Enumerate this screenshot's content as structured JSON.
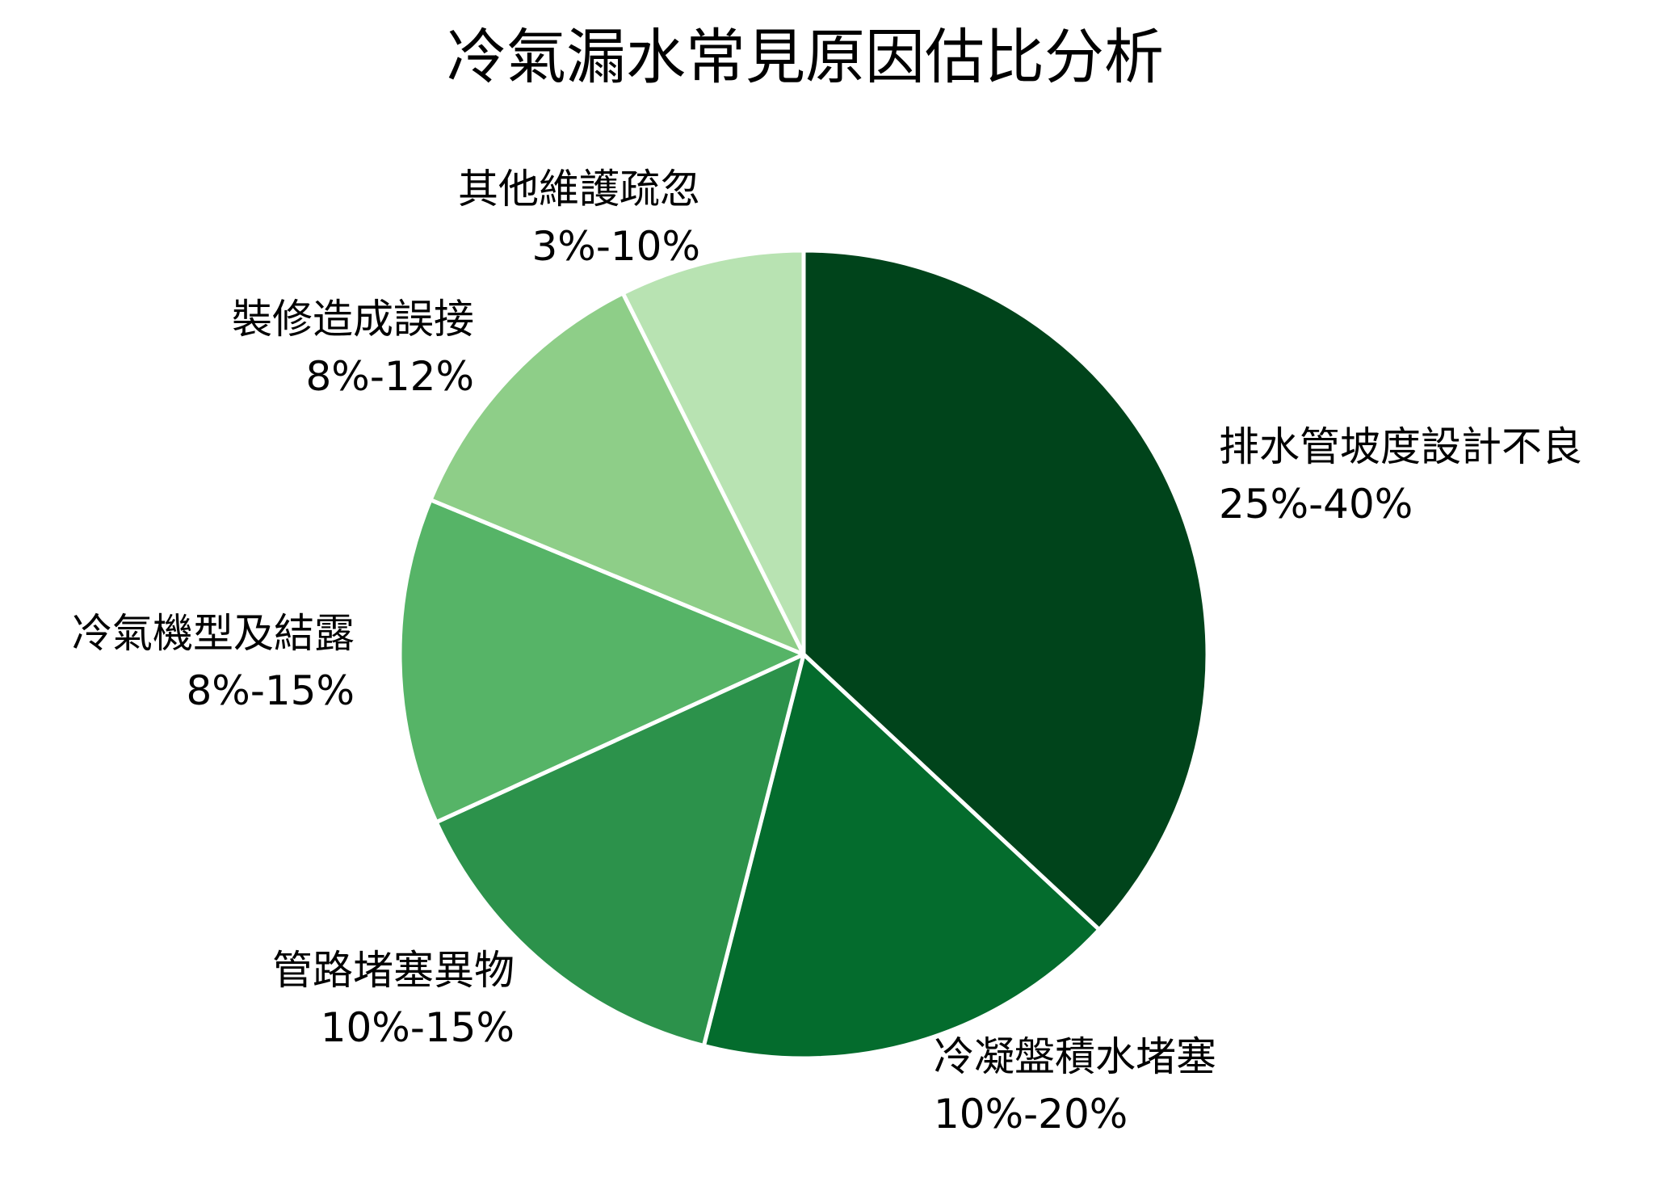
{
  "chart_data": {
    "type": "pie",
    "title": "冷氣漏水常見原因估比分析",
    "start_angle": "top, clockwise",
    "slices": [
      {
        "name": "排水管坡度設計不良",
        "range": "25%-40%",
        "value": 32.5,
        "color": "#00441b"
      },
      {
        "name": "冷凝盤積水堵塞",
        "range": "10%-20%",
        "value": 15,
        "color": "#046c2d"
      },
      {
        "name": "管路堵塞異物",
        "range": "10%-15%",
        "value": 12.5,
        "color": "#2c924b"
      },
      {
        "name": "冷氣機型及結露",
        "range": "8%-15%",
        "value": 11.5,
        "color": "#56b467"
      },
      {
        "name": "裝修造成誤接",
        "range": "8%-12%",
        "value": 10,
        "color": "#8ece88"
      },
      {
        "name": "其他維護疏忽",
        "range": "3%-10%",
        "value": 6.5,
        "color": "#b8e3b2"
      }
    ],
    "legend": "none",
    "slice_border_color": "#ffffff"
  }
}
